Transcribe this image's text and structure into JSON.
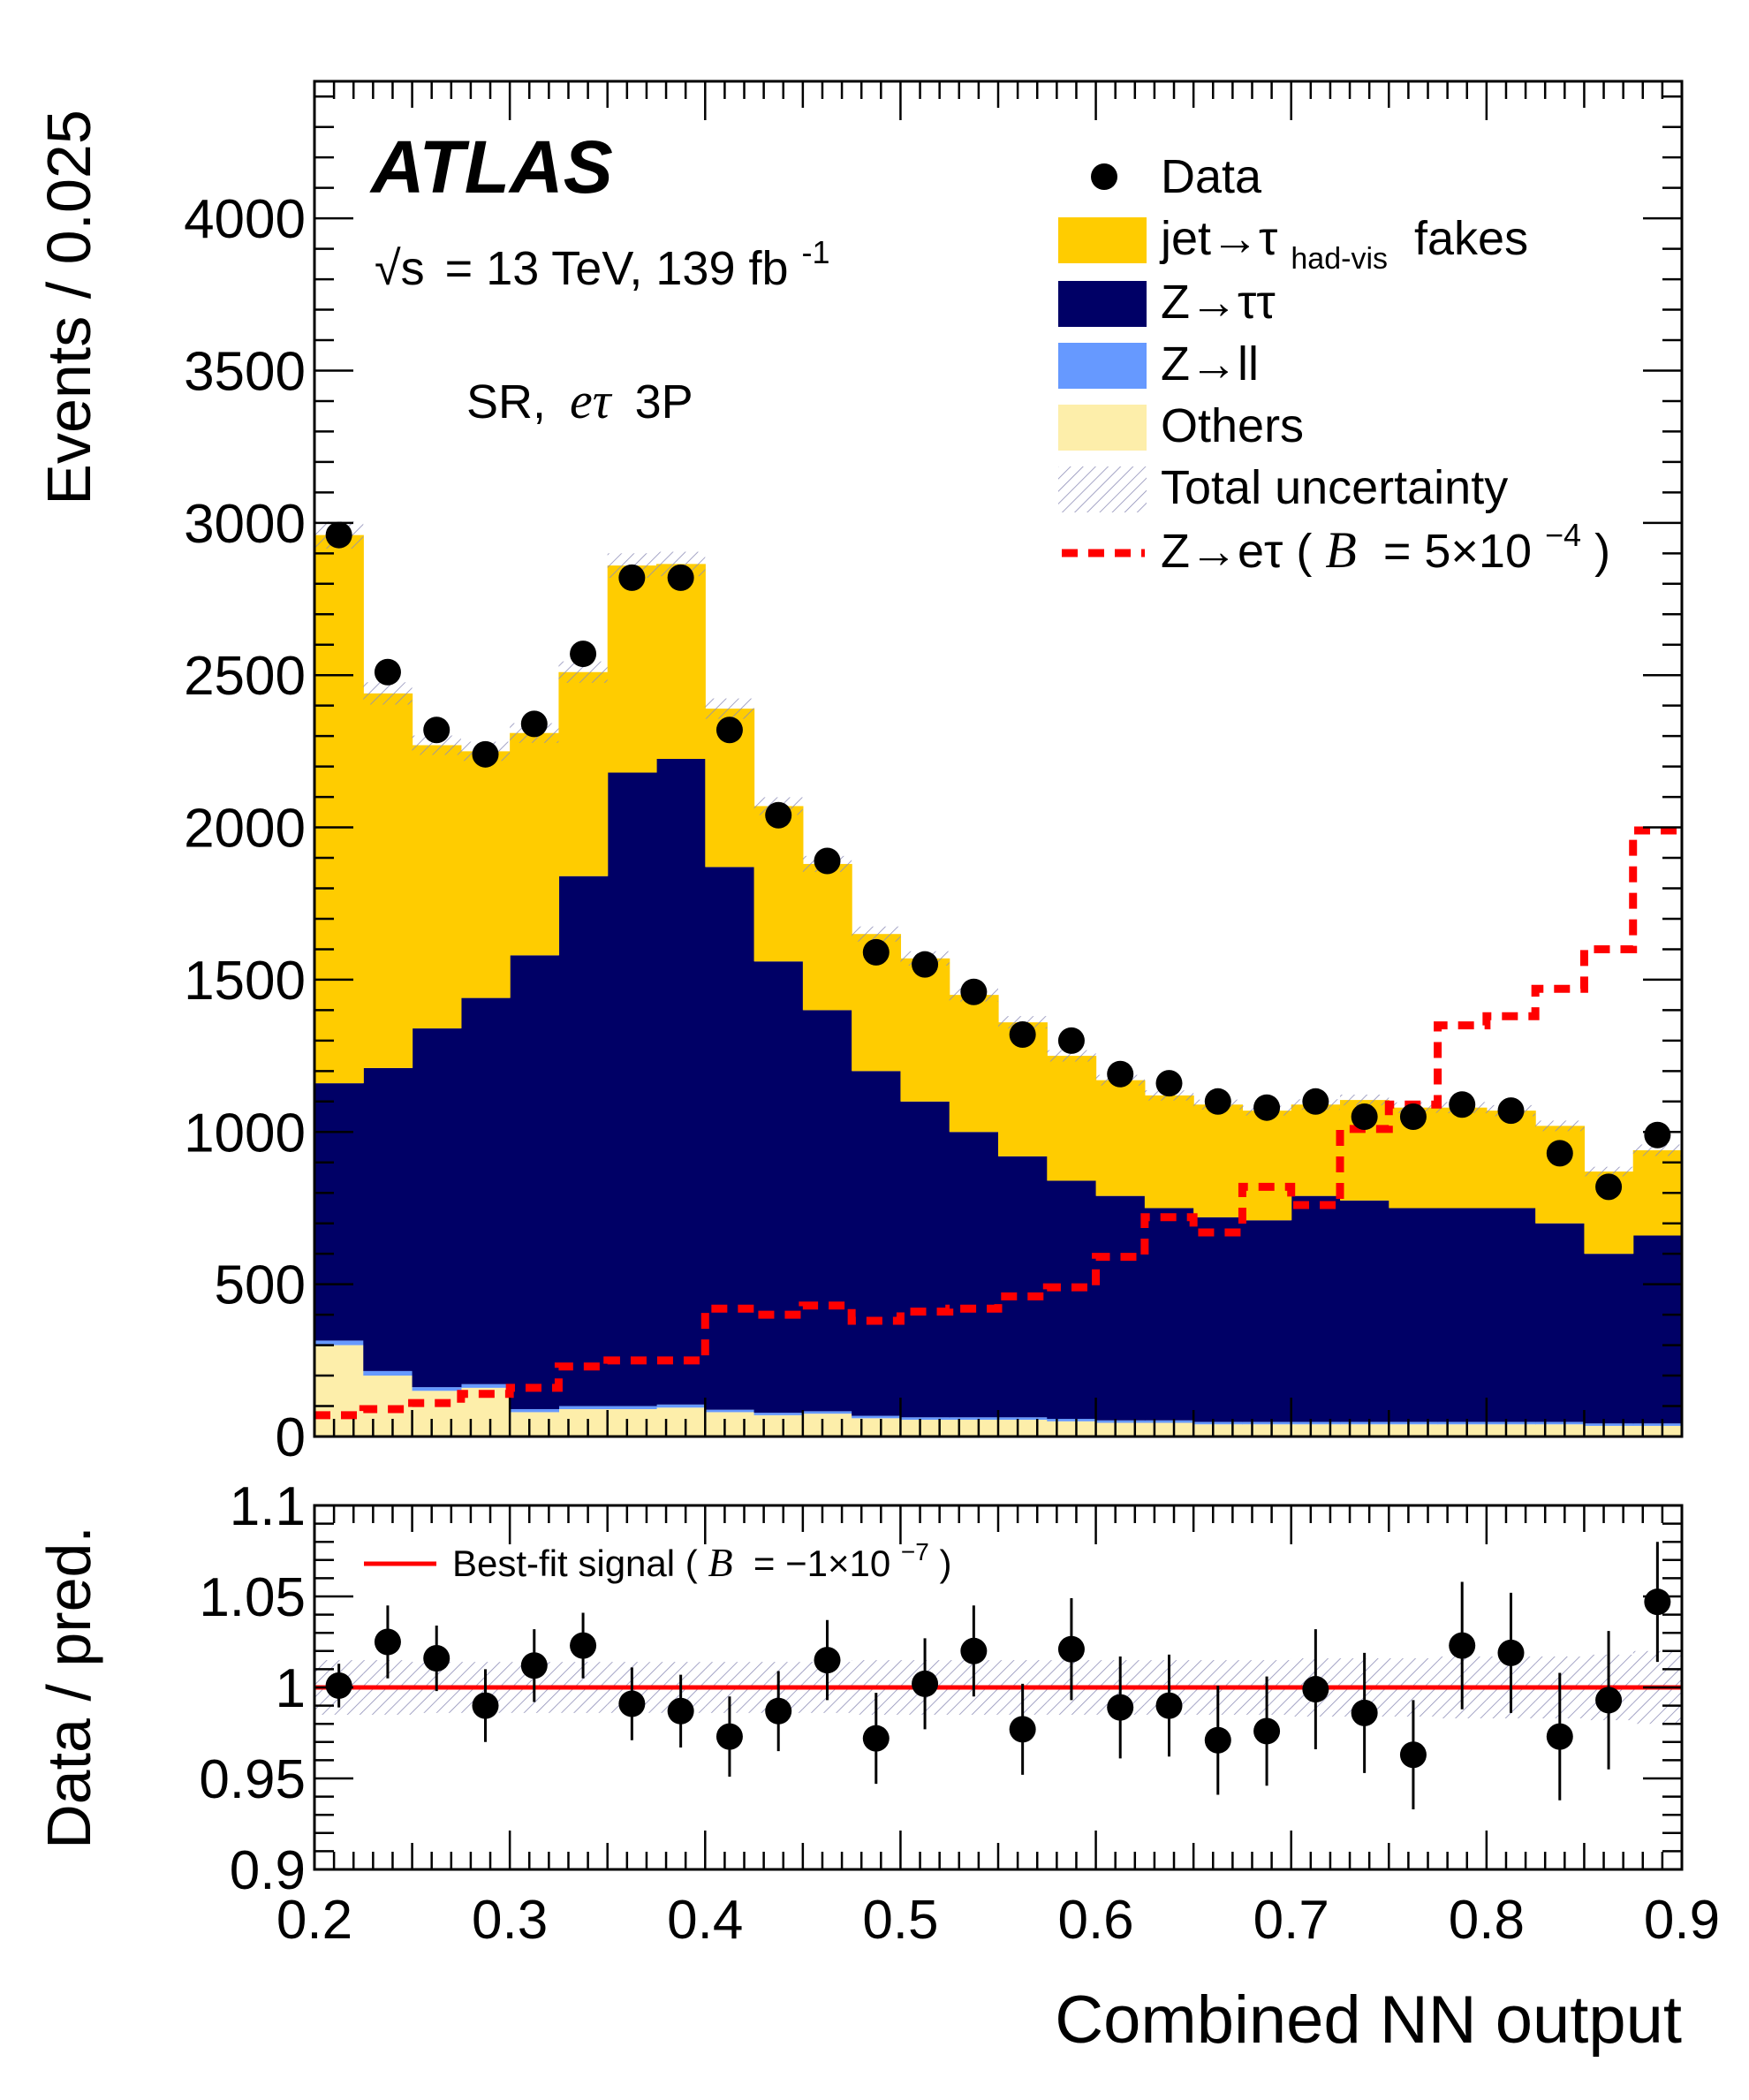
{
  "experiment": "ATLAS",
  "energy_label": {
    "sqrt": "√s",
    "text": "= 13 TeV, 139 fb",
    "sup": "-1"
  },
  "region_label": {
    "prefix": "SR,",
    "channel": "eτ",
    "suffix": "3P"
  },
  "colors": {
    "fakes": "#ffcc00",
    "ztautau": "#000066",
    "zll": "#6699ff",
    "others": "#fdeeaa",
    "signal": "#ff0000",
    "data": "#000000",
    "bestfit": "#ff0000"
  },
  "legend": {
    "data": "Data",
    "fakes": {
      "main": "jet→τ",
      "sub": "had-vis",
      "tail": " fakes"
    },
    "ztautau": "Z→ττ",
    "zll": "Z→ll",
    "others": "Others",
    "uncertainty": "Total uncertainty",
    "signal": {
      "main": "Z→eτ (",
      "B": "B",
      "eq": " = 5×10",
      "exp": "−4",
      "close": ")"
    }
  },
  "ratio_legend": {
    "main": "Best-fit signal (",
    "B": "B",
    "eq": " = −1×10",
    "exp": "−7",
    "close": ")"
  },
  "chart_data": [
    {
      "type": "bar",
      "stacked": true,
      "title": "",
      "ylabel": "Events / 0.025",
      "xlabel": "",
      "xlim": [
        0.2,
        0.9
      ],
      "ylim": [
        0,
        4450
      ],
      "bin_edges": [
        0.2,
        0.225,
        0.25,
        0.275,
        0.3,
        0.325,
        0.35,
        0.375,
        0.4,
        0.425,
        0.45,
        0.475,
        0.5,
        0.525,
        0.55,
        0.575,
        0.6,
        0.625,
        0.65,
        0.675,
        0.7,
        0.725,
        0.75,
        0.775,
        0.8,
        0.825,
        0.85,
        0.875,
        0.9
      ],
      "yticks": [
        0,
        500,
        1000,
        1500,
        2000,
        2500,
        3000,
        3500,
        4000
      ],
      "series": [
        {
          "name": "Others",
          "values": [
            300,
            200,
            150,
            160,
            80,
            90,
            90,
            95,
            80,
            70,
            75,
            60,
            55,
            55,
            55,
            50,
            45,
            45,
            40,
            40,
            40,
            40,
            40,
            40,
            40,
            40,
            35,
            35
          ]
        },
        {
          "name": "Z→ll",
          "values": [
            15,
            15,
            12,
            12,
            10,
            10,
            10,
            10,
            8,
            8,
            8,
            8,
            8,
            8,
            8,
            8,
            8,
            8,
            8,
            8,
            8,
            8,
            8,
            8,
            8,
            8,
            8,
            8
          ]
        },
        {
          "name": "Z→ττ",
          "values": [
            845,
            995,
            1178,
            1268,
            1490,
            1740,
            2080,
            2120,
            1782,
            1482,
            1317,
            1132,
            1037,
            937,
            857,
            782,
            737,
            697,
            672,
            662,
            742,
            727,
            702,
            702,
            702,
            652,
            557,
            617
          ]
        },
        {
          "name": "jet→τhad-vis fakes",
          "values": [
            1800,
            1230,
            930,
            810,
            730,
            670,
            680,
            640,
            520,
            510,
            480,
            450,
            470,
            450,
            440,
            410,
            380,
            370,
            370,
            360,
            300,
            330,
            330,
            330,
            320,
            320,
            270,
            280
          ]
        }
      ],
      "signal": {
        "name": "Z→eτ (B = 5×10−4)",
        "values": [
          70,
          90,
          110,
          140,
          160,
          230,
          250,
          250,
          420,
          400,
          430,
          380,
          410,
          420,
          460,
          490,
          590,
          720,
          670,
          820,
          760,
          1010,
          1090,
          1350,
          1380,
          1470,
          1600,
          1990
        ]
      },
      "data": {
        "name": "Data",
        "values": [
          2960,
          2510,
          2320,
          2240,
          2340,
          2570,
          2820,
          2820,
          2320,
          2040,
          1890,
          1590,
          1550,
          1460,
          1320,
          1300,
          1190,
          1160,
          1100,
          1080,
          1100,
          1050,
          1050,
          1090,
          1070,
          930,
          820,
          990
        ]
      },
      "legend_position": "top-right",
      "annotations": [
        "ATLAS",
        "√s = 13 TeV, 139 fb-1",
        "SR, eτ 3P"
      ]
    },
    {
      "type": "scatter",
      "title": "",
      "ylabel": "Data / pred.",
      "xlabel": "Combined NN output",
      "xlim": [
        0.2,
        0.9
      ],
      "ylim": [
        0.9,
        1.1
      ],
      "xticks": [
        0.2,
        0.3,
        0.4,
        0.5,
        0.6,
        0.7,
        0.8,
        0.9
      ],
      "yticks": [
        0.9,
        0.95,
        1,
        1.05,
        1.1
      ],
      "x": [
        0.2125,
        0.2375,
        0.2625,
        0.2875,
        0.3125,
        0.3375,
        0.3625,
        0.3875,
        0.4125,
        0.4375,
        0.4625,
        0.4875,
        0.5125,
        0.5375,
        0.5625,
        0.5875,
        0.6125,
        0.6375,
        0.6625,
        0.6875,
        0.7125,
        0.7375,
        0.7625,
        0.7875,
        0.8125,
        0.8375,
        0.8625,
        0.8875
      ],
      "y": [
        1.001,
        1.025,
        1.016,
        0.99,
        1.012,
        1.023,
        0.991,
        0.987,
        0.973,
        0.987,
        1.015,
        0.972,
        1.002,
        1.02,
        0.977,
        1.021,
        0.989,
        0.99,
        0.971,
        0.976,
        0.999,
        0.986,
        0.963,
        1.023,
        1.019,
        0.973,
        0.993,
        1.047
      ],
      "yerr": [
        0.012,
        0.02,
        0.018,
        0.02,
        0.02,
        0.018,
        0.02,
        0.02,
        0.022,
        0.022,
        0.022,
        0.025,
        0.025,
        0.025,
        0.025,
        0.028,
        0.028,
        0.028,
        0.03,
        0.03,
        0.033,
        0.033,
        0.03,
        0.035,
        0.033,
        0.035,
        0.038,
        0.033
      ],
      "uncertainty_band": [
        0.015,
        0.015,
        0.014,
        0.014,
        0.014,
        0.014,
        0.014,
        0.014,
        0.014,
        0.014,
        0.014,
        0.015,
        0.015,
        0.015,
        0.015,
        0.015,
        0.015,
        0.015,
        0.015,
        0.015,
        0.016,
        0.016,
        0.016,
        0.017,
        0.017,
        0.017,
        0.018,
        0.02
      ],
      "reference_line": 1.0,
      "legend_position": "top-left"
    }
  ]
}
